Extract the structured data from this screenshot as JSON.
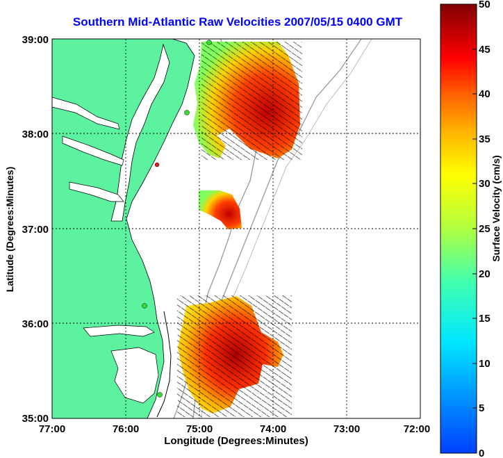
{
  "title": "Southern Mid-Atlantic Raw Velocities 2007/05/15 0400 GMT",
  "xlabel": "Longitude (Degrees:Minutes)",
  "ylabel": "Latitude (Degrees:Minutes)",
  "colorbar_label": "Surface Velocity (cm/s)",
  "colors": {
    "land": "#5cf2a0",
    "grid": "#000000",
    "title": "#0000ff",
    "station": "#33dd33",
    "station_alt": "#dd2222"
  },
  "chart_data": {
    "type": "heatmap",
    "title": "Southern Mid-Atlantic Raw Velocities 2007/05/15 0400 GMT",
    "xlabel": "Longitude (Degrees:Minutes)",
    "ylabel": "Latitude (Degrees:Minutes)",
    "x_ticks": [
      "77:00",
      "76:00",
      "75:00",
      "74:00",
      "73:00",
      "72:00"
    ],
    "y_ticks": [
      "39:00",
      "38:00",
      "37:00",
      "36:00",
      "35:00"
    ],
    "xlim": [
      -77,
      -72
    ],
    "ylim": [
      35,
      39
    ],
    "colorbar": {
      "label": "Surface Velocity (cm/s)",
      "ticks": [
        "50",
        "45",
        "40",
        "35",
        "30",
        "25",
        "20",
        "15",
        "10",
        "5",
        "0"
      ],
      "range": [
        0,
        50
      ]
    },
    "grid": true,
    "stations": [
      {
        "lon": -75.1,
        "lat": 38.95,
        "color": "green"
      },
      {
        "lon": -75.15,
        "lat": 38.22,
        "color": "green"
      },
      {
        "lon": -75.55,
        "lat": 37.7,
        "color": "red"
      },
      {
        "lon": -75.7,
        "lat": 36.2,
        "color": "green"
      },
      {
        "lon": -75.6,
        "lat": 35.25,
        "color": "green"
      }
    ]
  }
}
